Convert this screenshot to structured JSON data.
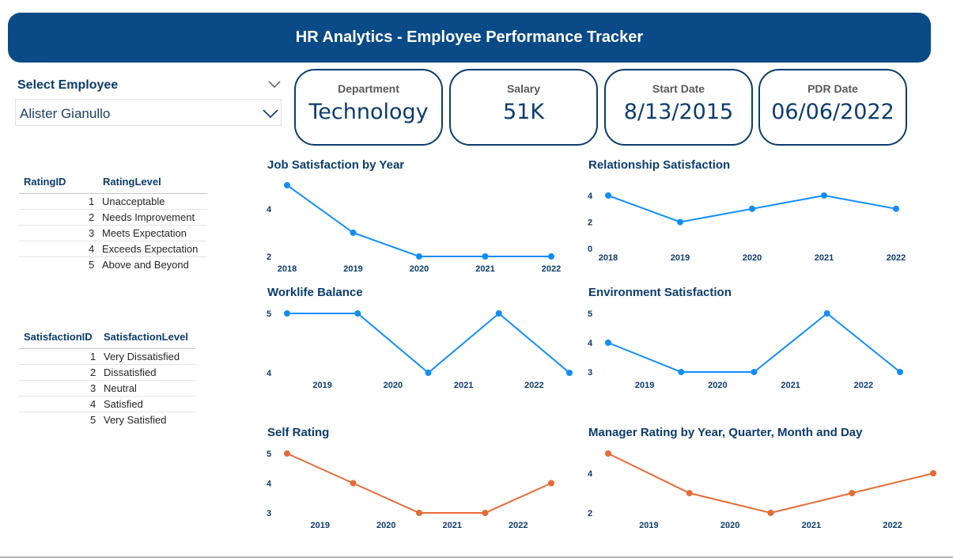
{
  "header": {
    "title": "HR Analytics - Employee Performance Tracker"
  },
  "slicer": {
    "label": "Select Employee",
    "value": "Alister Gianullo"
  },
  "cards": [
    {
      "label": "Department",
      "value": "Technology"
    },
    {
      "label": "Salary",
      "value": "51K"
    },
    {
      "label": "Start Date",
      "value": "8/13/2015"
    },
    {
      "label": "PDR Date",
      "value": "06/06/2022"
    }
  ],
  "rating_table": {
    "headers": [
      "RatingID",
      "RatingLevel"
    ],
    "rows": [
      [
        "1",
        "Unacceptable"
      ],
      [
        "2",
        "Needs Improvement"
      ],
      [
        "3",
        "Meets Expectation"
      ],
      [
        "4",
        "Exceeds Expectation"
      ],
      [
        "5",
        "Above and Beyond"
      ]
    ]
  },
  "satisfaction_table": {
    "headers": [
      "SatisfactionID",
      "SatisfactionLevel"
    ],
    "rows": [
      [
        "1",
        "Very Dissatisfied"
      ],
      [
        "2",
        "Dissatisfied"
      ],
      [
        "3",
        "Neutral"
      ],
      [
        "4",
        "Satisfied"
      ],
      [
        "5",
        "Very Satisfied"
      ]
    ]
  },
  "colors": {
    "blue_series": "#118dff",
    "orange_series": "#e66c37",
    "navy": "#0b3c6e"
  },
  "chart_data": [
    {
      "id": "job",
      "type": "line",
      "title": "Job Satisfaction by Year",
      "x": [
        2018,
        2019,
        2020,
        2021,
        2022
      ],
      "values": [
        5,
        3,
        2,
        2,
        2
      ],
      "xticks": [
        "2018",
        "2019",
        "2020",
        "2021",
        "2022"
      ],
      "yticks": [
        2,
        4
      ],
      "ylim": [
        2,
        5
      ],
      "color": "#118dff"
    },
    {
      "id": "rel",
      "type": "line",
      "title": "Relationship Satisfaction",
      "x": [
        2018,
        2019,
        2020,
        2021,
        2022
      ],
      "values": [
        4,
        2,
        3,
        4,
        3
      ],
      "xticks": [
        "2018",
        "2019",
        "2020",
        "2021",
        "2022"
      ],
      "yticks": [
        0,
        2,
        4
      ],
      "ylim": [
        0,
        4
      ],
      "color": "#118dff"
    },
    {
      "id": "wlb",
      "type": "line",
      "title": "Worklife Balance",
      "x": [
        2018.5,
        2019.5,
        2020.5,
        2021.5,
        2022.5
      ],
      "values": [
        5,
        5,
        4,
        5,
        4
      ],
      "xticks": [
        "2019",
        "2020",
        "2021",
        "2022"
      ],
      "yticks": [
        4,
        5
      ],
      "ylim": [
        4,
        5
      ],
      "color": "#118dff"
    },
    {
      "id": "env",
      "type": "line",
      "title": "Environment Satisfaction",
      "x": [
        2018.5,
        2019.5,
        2020.5,
        2021.5,
        2022.5
      ],
      "values": [
        4,
        3,
        3,
        5,
        3
      ],
      "xticks": [
        "2019",
        "2020",
        "2021",
        "2022"
      ],
      "yticks": [
        3,
        4,
        5
      ],
      "ylim": [
        3,
        5
      ],
      "color": "#118dff"
    },
    {
      "id": "self",
      "type": "line",
      "title": "Self Rating",
      "x": [
        2018.5,
        2019.5,
        2020.5,
        2021.5,
        2022.5
      ],
      "values": [
        5,
        4,
        3,
        3,
        4
      ],
      "xticks": [
        "2019",
        "2020",
        "2021",
        "2022"
      ],
      "yticks": [
        3,
        4,
        5
      ],
      "ylim": [
        3,
        5
      ],
      "color": "#e66c37"
    },
    {
      "id": "mgr",
      "type": "line",
      "title": "Manager Rating by Year, Quarter, Month and Day",
      "x": [
        2018.5,
        2019.5,
        2020.5,
        2021.5,
        2022.5
      ],
      "values": [
        5,
        3,
        2,
        3,
        4
      ],
      "xticks": [
        "2019",
        "2020",
        "2021",
        "2022"
      ],
      "yticks": [
        2,
        4
      ],
      "ylim": [
        2,
        5
      ],
      "color": "#e66c37"
    }
  ]
}
